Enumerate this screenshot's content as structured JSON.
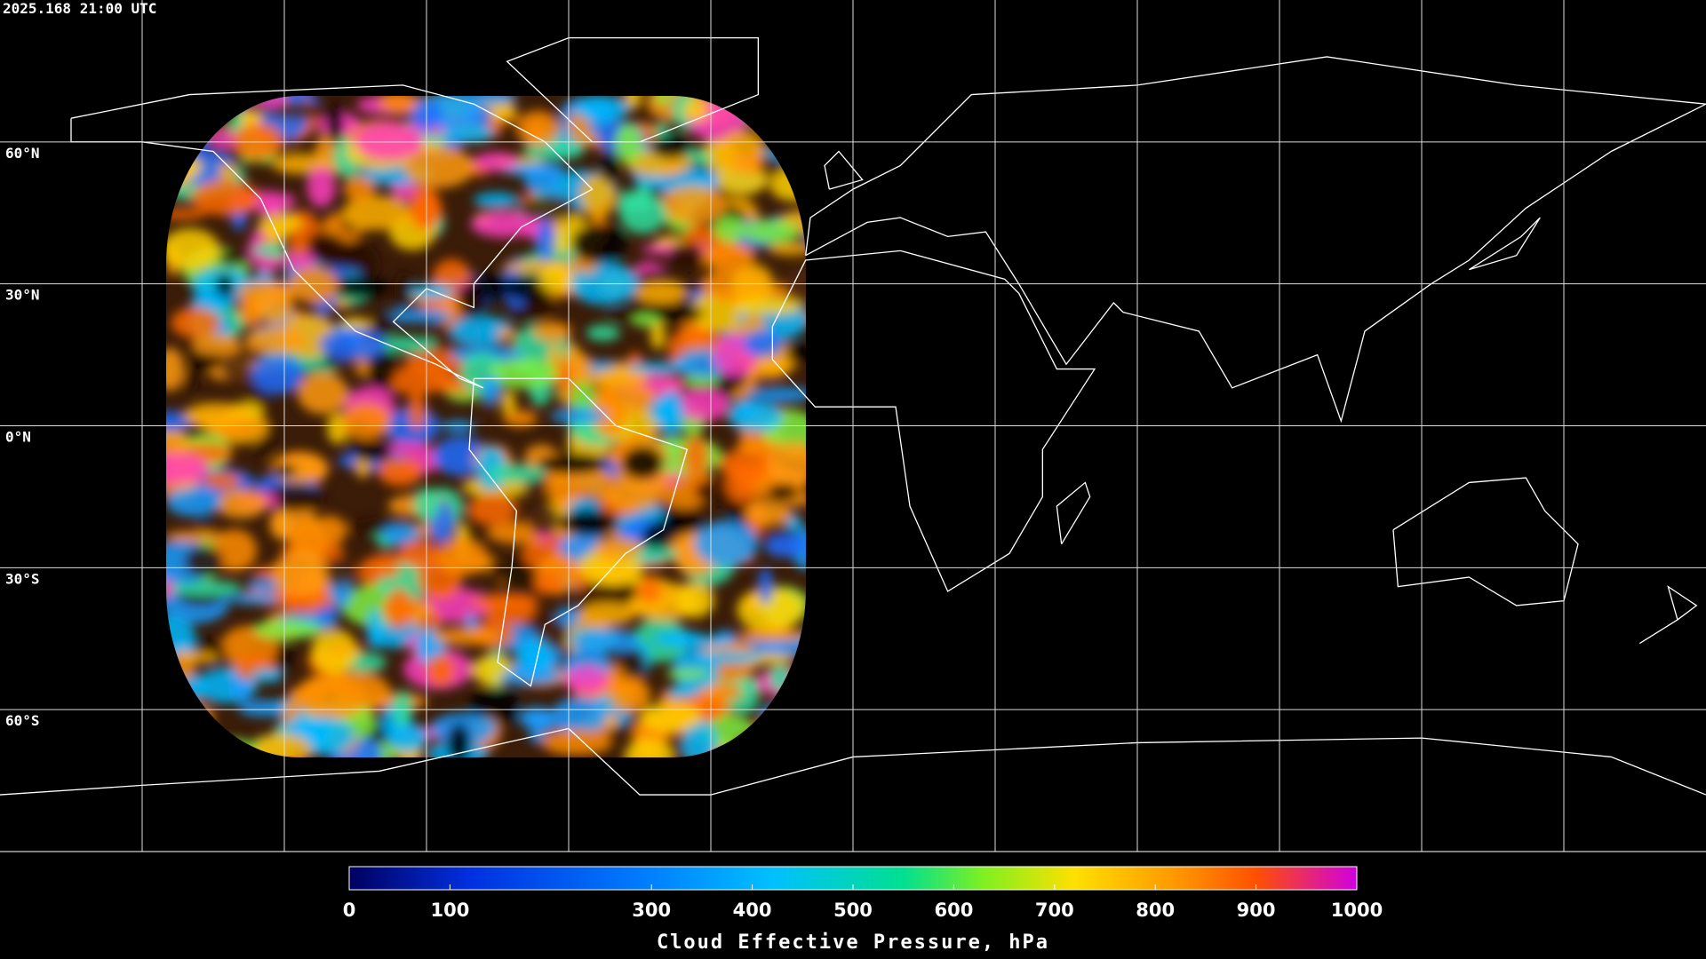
{
  "timestamp": "2025.168 21:00 UTC",
  "grid": {
    "latitudes": [
      {
        "value": 60,
        "label": "60°N"
      },
      {
        "value": 30,
        "label": "30°N"
      },
      {
        "value": 0,
        "label": "0°N"
      },
      {
        "value": -30,
        "label": "30°S"
      },
      {
        "value": -60,
        "label": "60°S"
      }
    ]
  },
  "colorbar": {
    "title": "Cloud Effective Pressure, hPa",
    "lim": [
      0,
      1000
    ],
    "ticks": [
      0,
      100,
      300,
      400,
      500,
      600,
      700,
      800,
      900,
      1000
    ]
  }
}
